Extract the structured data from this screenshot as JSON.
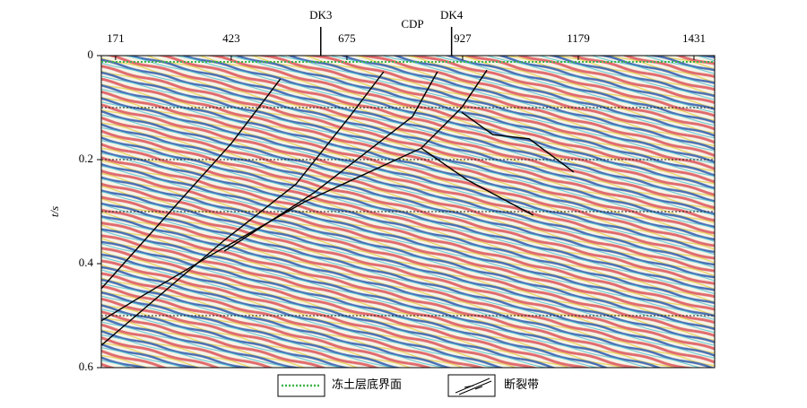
{
  "chart_data": {
    "type": "seismic-section",
    "xlabel": "CDP",
    "ylabel": "t/s",
    "xlim": [
      140,
      1476
    ],
    "xticks": [
      171,
      423,
      675,
      927,
      1179,
      1431
    ],
    "ylim": [
      0,
      0.6
    ],
    "yticks": [
      0,
      0.2,
      0.4,
      0.6
    ],
    "reference_lines": [
      0.1,
      0.2,
      0.3,
      0.5
    ],
    "markers": [
      {
        "label": "DK3",
        "x": 618
      },
      {
        "label": "DK4",
        "x": 903
      }
    ],
    "permafrost_base": {
      "name": "冻土层底界面",
      "color": "#3cb44b",
      "t": 0.012
    },
    "faults": {
      "name": "断裂带",
      "color": "#000000",
      "lines": [
        {
          "x": [
            530,
            423,
            140
          ],
          "y": [
            0.045,
            0.169,
            0.448
          ]
        },
        {
          "x": [
            755,
            681,
            564,
            408,
            140
          ],
          "y": [
            0.031,
            0.117,
            0.247,
            0.355,
            0.557
          ]
        },
        {
          "x": [
            872,
            818,
            603,
            408
          ],
          "y": [
            0.031,
            0.117,
            0.264,
            0.376
          ]
        },
        {
          "x": [
            980,
            925,
            837,
            583,
            388,
            212,
            140
          ],
          "y": [
            0.028,
            0.1,
            0.178,
            0.281,
            0.379,
            0.471,
            0.51
          ]
        },
        {
          "x": [
            925,
            993,
            1072,
            1169
          ],
          "y": [
            0.109,
            0.152,
            0.16,
            0.224
          ]
        },
        {
          "x": [
            837,
            935,
            1081
          ],
          "y": [
            0.178,
            0.238,
            0.307
          ]
        }
      ]
    }
  }
}
